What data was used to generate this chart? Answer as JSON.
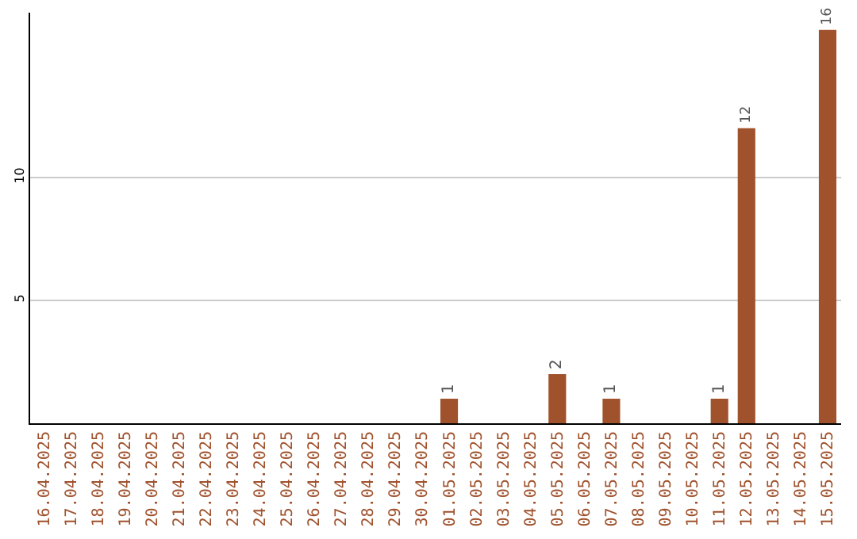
{
  "chart_data": {
    "type": "bar",
    "categories": [
      "16.04.2025",
      "17.04.2025",
      "18.04.2025",
      "19.04.2025",
      "20.04.2025",
      "21.04.2025",
      "22.04.2025",
      "23.04.2025",
      "24.04.2025",
      "25.04.2025",
      "26.04.2025",
      "27.04.2025",
      "28.04.2025",
      "29.04.2025",
      "30.04.2025",
      "01.05.2025",
      "02.05.2025",
      "03.05.2025",
      "04.05.2025",
      "05.05.2025",
      "06.05.2025",
      "07.05.2025",
      "08.05.2025",
      "09.05.2025",
      "10.05.2025",
      "11.05.2025",
      "12.05.2025",
      "13.05.2025",
      "14.05.2025",
      "15.05.2025"
    ],
    "values": [
      0,
      0,
      0,
      0,
      0,
      0,
      0,
      0,
      0,
      0,
      0,
      0,
      0,
      0,
      0,
      1,
      0,
      0,
      0,
      2,
      0,
      1,
      0,
      0,
      0,
      1,
      12,
      0,
      0,
      16
    ],
    "value_labels": [
      null,
      null,
      null,
      null,
      null,
      null,
      null,
      null,
      null,
      null,
      null,
      null,
      null,
      null,
      null,
      "1",
      null,
      null,
      null,
      "2",
      null,
      "1",
      null,
      null,
      null,
      "1",
      "12",
      null,
      null,
      "16"
    ],
    "color": "#a0522d",
    "ylim": [
      0,
      16.7
    ],
    "yticks": [
      5,
      10
    ],
    "grid": "y",
    "legend": false
  }
}
